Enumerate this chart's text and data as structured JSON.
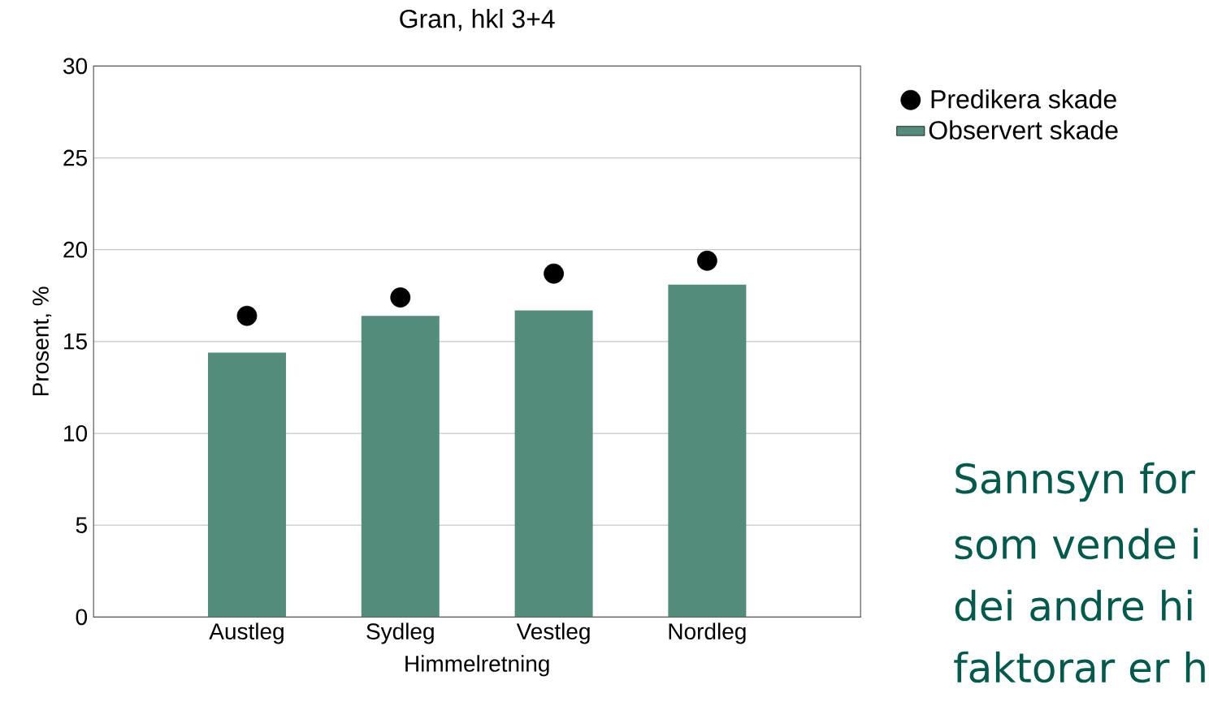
{
  "chart_data": {
    "type": "bar",
    "title": "Gran, hkl 3+4",
    "xlabel": "Himmelretning",
    "ylabel": "Prosent, %",
    "categories": [
      "Austleg",
      "Sydleg",
      "Vestleg",
      "Nordleg"
    ],
    "series": [
      {
        "name": "Predikera skade",
        "type": "scatter",
        "color": "#000000",
        "values": [
          16.4,
          17.4,
          18.7,
          19.4
        ]
      },
      {
        "name": "Observert skade",
        "color": "#548c7b",
        "values": [
          14.4,
          16.4,
          16.7,
          18.1
        ]
      }
    ],
    "ylim": [
      0,
      30
    ],
    "yticks": [
      0,
      5,
      10,
      15,
      20,
      25,
      30
    ],
    "grid": "y",
    "legend": "top right",
    "marker": "circle",
    "annotations": [
      "Sannsyn for",
      "som vende i",
      "dei andre hi",
      "faktorar er h"
    ]
  }
}
